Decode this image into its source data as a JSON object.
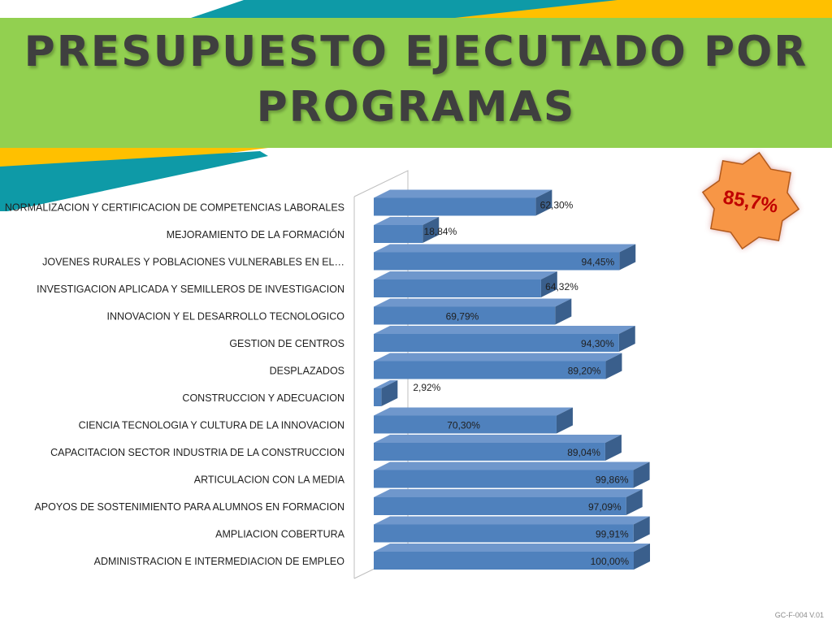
{
  "slide": {
    "title_line1": "PRESUPUESTO EJECUTADO POR",
    "title_line2": "PROGRAMAS",
    "badge_value": "85,7%",
    "footer_code": "GC-F-004 V.01"
  },
  "colors": {
    "banner": "#92d050",
    "stripe_teal": "#0e9aa7",
    "stripe_yellow": "#ffc000",
    "bar_front": "#4f81bd",
    "bar_top": "#6f97cc",
    "bar_side": "#3a5f8c",
    "badge_fill": "#f79646",
    "badge_text": "#c00000"
  },
  "chart_data": {
    "type": "bar",
    "orientation": "horizontal",
    "style": "3d",
    "title": "",
    "xlabel": "",
    "ylabel": "",
    "xlim": [
      0,
      100
    ],
    "grid": false,
    "legend": "none",
    "categories": [
      "ADMINISTRACION E INTERMEDIACION DE EMPLEO",
      "AMPLIACION COBERTURA",
      "APOYOS DE SOSTENIMIENTO PARA ALUMNOS EN FORMACION",
      "ARTICULACION CON LA MEDIA",
      "CAPACITACION SECTOR INDUSTRIA DE LA CONSTRUCCION",
      "CIENCIA TECNOLOGIA Y CULTURA DE LA INNOVACION",
      "CONSTRUCCION Y ADECUACION",
      "DESPLAZADOS",
      "GESTION DE CENTROS",
      "INNOVACION Y EL DESARROLLO TECNOLOGICO",
      "INVESTIGACION APLICADA Y SEMILLEROS DE INVESTIGACION",
      "JOVENES RURALES Y POBLACIONES VULNERABLES EN EL…",
      "MEJORAMIENTO DE LA FORMACIÓN",
      "NORMALIZACION Y CERTIFICACION DE COMPETENCIAS LABORALES"
    ],
    "values": [
      100.0,
      99.91,
      97.09,
      99.86,
      89.04,
      70.3,
      2.92,
      89.2,
      94.3,
      69.79,
      64.32,
      94.45,
      18.84,
      62.3
    ],
    "value_labels": [
      "100,00%",
      "99,91%",
      "97,09%",
      "99,86%",
      "89,04%",
      "70,30%",
      "2,92%",
      "89,20%",
      "94,30%",
      "69,79%",
      "64,32%",
      "94,45%",
      "18,84%",
      "62,30%"
    ]
  }
}
